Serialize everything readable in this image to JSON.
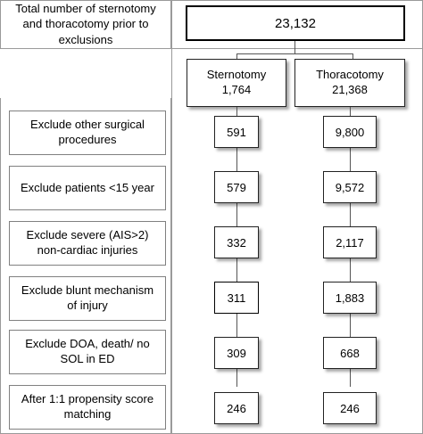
{
  "top": {
    "label": "Total number of sternotomy and thoracotomy prior to exclusions",
    "total": "23,132"
  },
  "groups": {
    "sternotomy": {
      "name": "Sternotomy",
      "count": "1,764"
    },
    "thoracotomy": {
      "name": "Thoracotomy",
      "count": "21,368"
    }
  },
  "steps": [
    {
      "label": "Exclude other surgical procedures",
      "sternotomy": "591",
      "thoracotomy": "9,800"
    },
    {
      "label": "Exclude patients <15 year",
      "sternotomy": "579",
      "thoracotomy": "9,572"
    },
    {
      "label": "Exclude severe (AIS>2) non-cardiac injuries",
      "sternotomy": "332",
      "thoracotomy": "2,117"
    },
    {
      "label": "Exclude blunt mechanism of injury",
      "sternotomy": "311",
      "thoracotomy": "1,883"
    },
    {
      "label": "Exclude DOA, death/ no SOL in ED",
      "sternotomy": "309",
      "thoracotomy": "668"
    },
    {
      "label": "After 1:1 propensity score matching",
      "sternotomy": "246",
      "thoracotomy": "246"
    }
  ]
}
